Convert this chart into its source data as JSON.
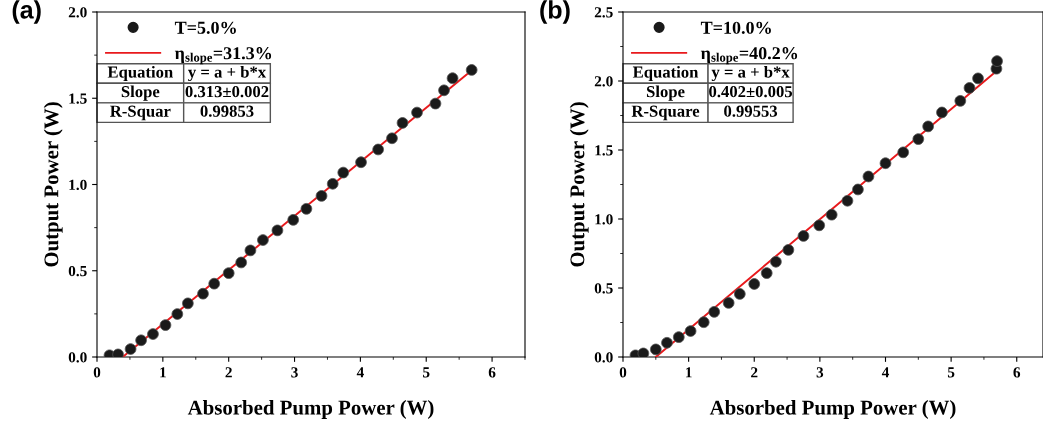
{
  "chart_data": [
    {
      "type": "scatter",
      "xlabel": "Absorbed Pump Power (W)",
      "ylabel": "Output Power (W)",
      "annotations": [
        "(a)",
        "Equation",
        "y = a + b*x",
        "Slope",
        "0.313±0.002",
        "R-Squar",
        "0.99853"
      ],
      "xlim": [
        0,
        6.5
      ],
      "ylim": [
        0,
        2.0
      ],
      "xticks": [
        0,
        1,
        2,
        3,
        4,
        5,
        6
      ],
      "yticks": [
        {
          "value": 0,
          "label": "0.0"
        },
        {
          "value": 0.5,
          "label": "0.5"
        },
        {
          "value": 1.0,
          "label": "1.0"
        },
        {
          "value": 1.5,
          "label": "1.5"
        },
        {
          "value": 2.0,
          "label": "2.0"
        }
      ],
      "legend": "top left",
      "grid": false,
      "series": [
        {
          "name": "T=5.0%",
          "marker": "circle",
          "color": "#1a1a1a",
          "x": [
            0.19,
            0.32,
            0.51,
            0.67,
            0.85,
            1.04,
            1.22,
            1.38,
            1.61,
            1.78,
            2.0,
            2.19,
            2.33,
            2.52,
            2.74,
            2.98,
            3.18,
            3.41,
            3.58,
            3.74,
            4.01,
            4.27,
            4.48,
            4.64,
            4.86,
            5.14,
            5.27,
            5.4,
            5.69
          ],
          "values": [
            0.01,
            0.015,
            0.046,
            0.097,
            0.133,
            0.185,
            0.249,
            0.311,
            0.367,
            0.425,
            0.486,
            0.548,
            0.618,
            0.678,
            0.734,
            0.795,
            0.859,
            0.934,
            1.004,
            1.069,
            1.129,
            1.203,
            1.268,
            1.357,
            1.417,
            1.469,
            1.546,
            1.616,
            1.664
          ]
        },
        {
          "name": "η$_{slope}$=31.3%",
          "type": "line",
          "marker": "none",
          "color": "#e8191c",
          "x": [
            0.39,
            5.64
          ],
          "values": [
            0.0,
            1.645
          ]
        }
      ]
    },
    {
      "type": "scatter",
      "xlabel": "Absorbed Pump Power (W)",
      "ylabel": "Output Power (W)",
      "annotations": [
        "(b)",
        "Equation",
        "y = a + b*x",
        "Slope",
        "0.402±0.005",
        "R-Square",
        "0.99553"
      ],
      "xlim": [
        0,
        6.4
      ],
      "ylim": [
        0,
        2.5
      ],
      "xticks": [
        0,
        1,
        2,
        3,
        4,
        5,
        6
      ],
      "yticks": [
        {
          "value": 0,
          "label": "0.0"
        },
        {
          "value": 0.5,
          "label": "0.5"
        },
        {
          "value": 1.0,
          "label": "1.0"
        },
        {
          "value": 1.5,
          "label": "1.5"
        },
        {
          "value": 2.0,
          "label": "2.0"
        },
        {
          "value": 2.5,
          "label": "2.5"
        }
      ],
      "legend": "top left",
      "grid": false,
      "series": [
        {
          "name": "T=10.0%",
          "marker": "circle",
          "color": "#1a1a1a",
          "x": [
            0.19,
            0.31,
            0.5,
            0.67,
            0.85,
            1.03,
            1.23,
            1.39,
            1.61,
            1.78,
            2.0,
            2.19,
            2.33,
            2.52,
            2.75,
            2.99,
            3.18,
            3.42,
            3.58,
            3.74,
            4.0,
            4.27,
            4.5,
            4.65,
            4.86,
            5.14,
            5.28,
            5.41,
            5.69,
            5.7
          ],
          "values": [
            0.012,
            0.026,
            0.055,
            0.103,
            0.144,
            0.188,
            0.252,
            0.327,
            0.392,
            0.457,
            0.529,
            0.608,
            0.69,
            0.776,
            0.877,
            0.954,
            1.031,
            1.132,
            1.214,
            1.308,
            1.404,
            1.483,
            1.579,
            1.671,
            1.772,
            1.856,
            1.95,
            2.019,
            2.089,
            2.144
          ]
        },
        {
          "name": "η$_{slope}$=40.2%",
          "type": "line",
          "marker": "none",
          "color": "#e8191c",
          "x": [
            0.5,
            5.69
          ],
          "values": [
            0.0,
            2.072
          ]
        }
      ]
    }
  ]
}
